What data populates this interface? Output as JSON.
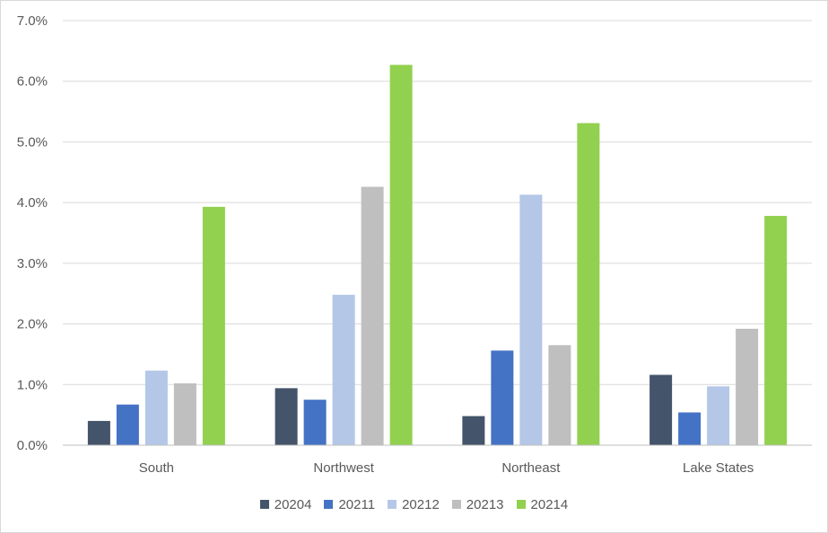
{
  "chart_data": {
    "type": "bar",
    "categories": [
      "South",
      "Northwest",
      "Northeast",
      "Lake States"
    ],
    "series": [
      {
        "name": "20204",
        "color": "#44546a",
        "values": [
          0.4,
          0.94,
          0.48,
          1.16
        ]
      },
      {
        "name": "20211",
        "color": "#4472c4",
        "values": [
          0.67,
          0.75,
          1.56,
          0.54
        ]
      },
      {
        "name": "20212",
        "color": "#b4c7e7",
        "values": [
          1.23,
          2.48,
          4.13,
          0.97
        ]
      },
      {
        "name": "20213",
        "color": "#bfbfbf",
        "values": [
          1.02,
          4.26,
          1.65,
          1.92
        ]
      },
      {
        "name": "20214",
        "color": "#92d050",
        "values": [
          3.93,
          6.27,
          5.31,
          3.78
        ]
      }
    ],
    "ylim": [
      0,
      7
    ],
    "yticks": [
      "0.0%",
      "1.0%",
      "2.0%",
      "3.0%",
      "4.0%",
      "5.0%",
      "6.0%",
      "7.0%"
    ],
    "grid": true,
    "legend_position": "bottom"
  }
}
